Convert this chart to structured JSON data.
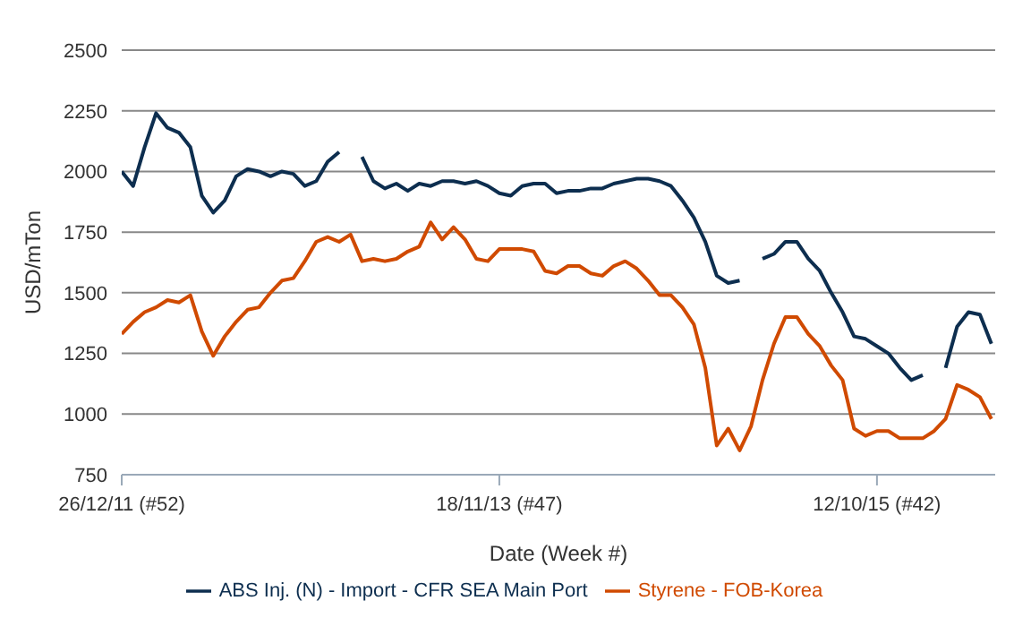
{
  "chart_data": {
    "type": "line",
    "xlabel": "Date (Week #)",
    "ylabel": "USD/mTon",
    "x": [
      "2011-12-26",
      "2012-01-16",
      "2012-02-06",
      "2012-02-27",
      "2012-03-19",
      "2012-04-09",
      "2012-04-30",
      "2012-05-21",
      "2012-06-11",
      "2012-07-02",
      "2012-07-23",
      "2012-08-13",
      "2012-09-03",
      "2012-09-24",
      "2012-10-15",
      "2012-11-05",
      "2012-11-26",
      "2012-12-17",
      "2013-01-07",
      "2013-01-28",
      "2013-02-18",
      "2013-03-11",
      "2013-04-01",
      "2013-04-22",
      "2013-05-13",
      "2013-06-03",
      "2013-06-24",
      "2013-07-15",
      "2013-08-05",
      "2013-08-26",
      "2013-09-16",
      "2013-10-07",
      "2013-10-28",
      "2013-11-18",
      "2013-12-09",
      "2013-12-30",
      "2014-01-20",
      "2014-02-10",
      "2014-03-03",
      "2014-03-24",
      "2014-04-14",
      "2014-05-05",
      "2014-05-26",
      "2014-06-16",
      "2014-07-07",
      "2014-07-28",
      "2014-08-18",
      "2014-09-08",
      "2014-09-29",
      "2014-10-20",
      "2014-11-10",
      "2014-12-01",
      "2014-12-22",
      "2015-01-12",
      "2015-02-02",
      "2015-02-23",
      "2015-03-16",
      "2015-04-06",
      "2015-04-27",
      "2015-05-18",
      "2015-06-08",
      "2015-06-29",
      "2015-07-20",
      "2015-08-10",
      "2015-08-31",
      "2015-09-21",
      "2015-10-12",
      "2015-11-02",
      "2015-11-23",
      "2015-12-14",
      "2016-01-04",
      "2016-01-25",
      "2016-02-15",
      "2016-03-07",
      "2016-03-28",
      "2016-04-18",
      "2016-05-09"
    ],
    "series": [
      {
        "name": "ABS Inj. (N) - Import - CFR SEA Main Port",
        "color": "#0d2e4f",
        "values": [
          2000,
          1940,
          2100,
          2240,
          2180,
          2160,
          2100,
          1900,
          1830,
          1880,
          1980,
          2010,
          2000,
          1980,
          2000,
          1990,
          1940,
          1960,
          2040,
          2080,
          null,
          2060,
          1960,
          1930,
          1950,
          1920,
          1950,
          1940,
          1960,
          1960,
          1950,
          1960,
          1940,
          1910,
          1900,
          1940,
          1950,
          1950,
          1910,
          1920,
          1920,
          1930,
          1930,
          1950,
          1960,
          1970,
          1970,
          1960,
          1940,
          1880,
          1810,
          1710,
          1570,
          1540,
          1550,
          null,
          1640,
          1660,
          1710,
          1710,
          1640,
          1590,
          1500,
          1420,
          1320,
          1310,
          1280,
          1250,
          1190,
          1140,
          1160,
          null,
          1190,
          1360,
          1420,
          1410,
          1290
        ]
      },
      {
        "name": "Styrene - FOB-Korea",
        "color": "#d04a00",
        "values": [
          1330,
          1380,
          1420,
          1440,
          1470,
          1460,
          1490,
          1340,
          1240,
          1320,
          1380,
          1430,
          1440,
          1500,
          1550,
          1560,
          1630,
          1710,
          1730,
          1710,
          1740,
          1630,
          1640,
          1630,
          1640,
          1670,
          1690,
          1790,
          1720,
          1770,
          1720,
          1640,
          1630,
          1680,
          1680,
          1680,
          1670,
          1590,
          1580,
          1610,
          1610,
          1580,
          1570,
          1610,
          1630,
          1600,
          1550,
          1490,
          1490,
          1440,
          1370,
          1190,
          870,
          940,
          850,
          950,
          1140,
          1290,
          1400,
          1400,
          1330,
          1280,
          1200,
          1140,
          940,
          910,
          930,
          930,
          900,
          900,
          900,
          930,
          980,
          1120,
          1100,
          1070,
          980
        ]
      }
    ],
    "xlim": [
      "2011-12-26",
      "2016-05-16"
    ],
    "xticks": [
      {
        "value": "2011-12-26",
        "label": "26/12/11 (#52)"
      },
      {
        "value": "2013-11-18",
        "label": "18/11/13 (#47)"
      },
      {
        "value": "2015-10-12",
        "label": "12/10/15 (#42)"
      }
    ],
    "ylim": [
      750,
      2500
    ],
    "yticks": [
      750,
      1000,
      1250,
      1500,
      1750,
      2000,
      2250,
      2500
    ],
    "grid": "y",
    "legend": "bottom"
  }
}
